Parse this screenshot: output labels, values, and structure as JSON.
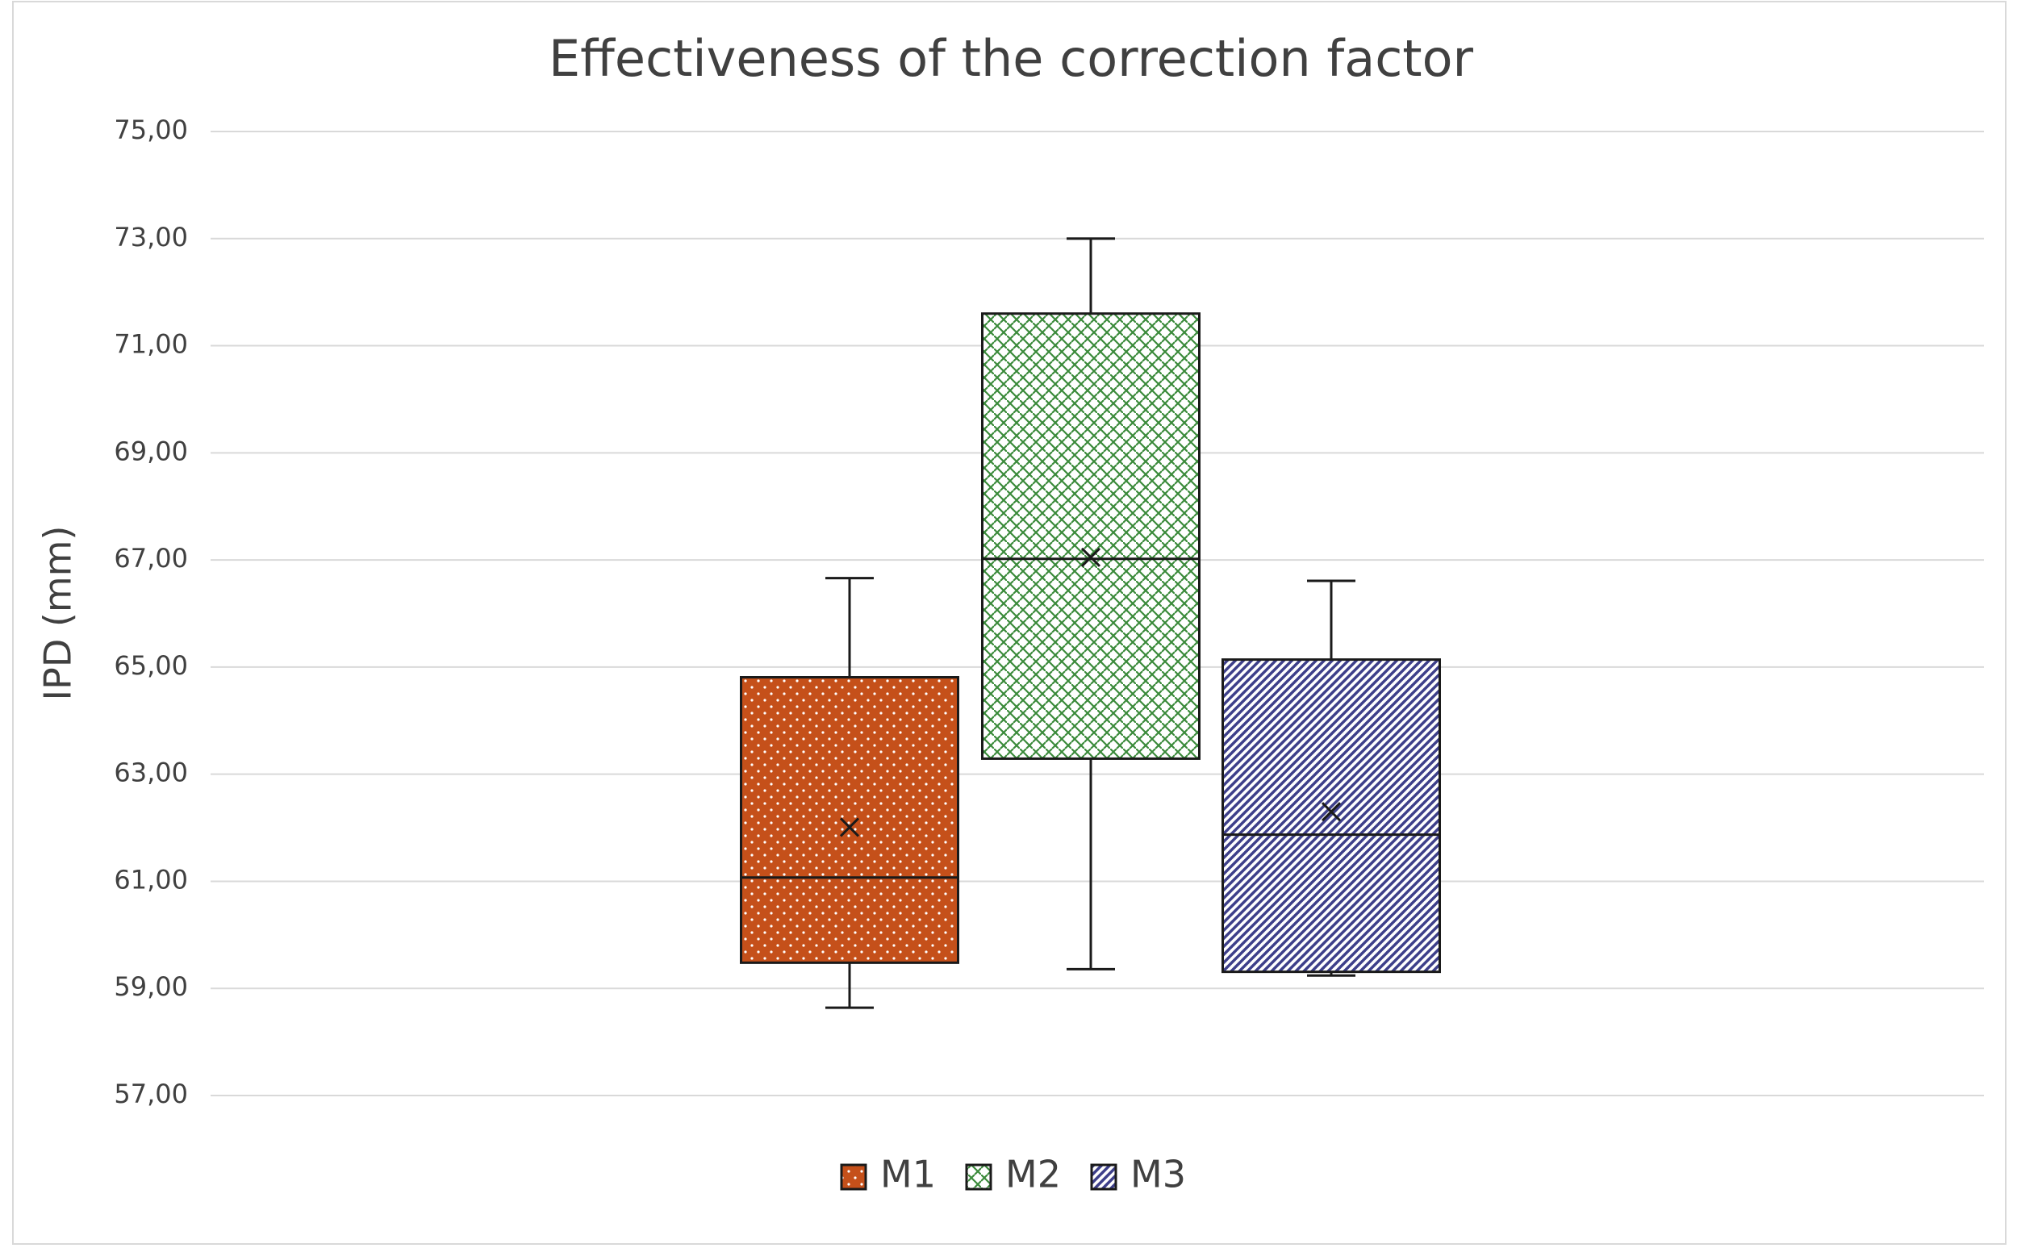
{
  "chart_data": {
    "type": "box",
    "title": "Effectiveness of the correction factor",
    "y_label": "IPD (mm)",
    "ylim": [
      57,
      75
    ],
    "yticks": [
      {
        "value": 57,
        "label": "57,00"
      },
      {
        "value": 59,
        "label": "59,00"
      },
      {
        "value": 61,
        "label": "61,00"
      },
      {
        "value": 63,
        "label": "63,00"
      },
      {
        "value": 65,
        "label": "65,00"
      },
      {
        "value": 67,
        "label": "67,00"
      },
      {
        "value": 69,
        "label": "69,00"
      },
      {
        "value": 71,
        "label": "71,00"
      },
      {
        "value": 73,
        "label": "73,00"
      },
      {
        "value": 75,
        "label": "75,00"
      }
    ],
    "grid": true,
    "legend": "bottom",
    "series": [
      {
        "name": "M1",
        "color": "#c5501a",
        "pattern": "dots",
        "min": 58.64,
        "q1": 59.48,
        "median": 61.07,
        "q3": 64.81,
        "max": 66.66,
        "mean": 62.01
      },
      {
        "name": "M2",
        "color": "#3a8a3a",
        "pattern": "weave",
        "min": 59.36,
        "q1": 63.29,
        "median": 67.02,
        "q3": 71.6,
        "max": 73.0,
        "mean": 67.05
      },
      {
        "name": "M3",
        "color": "#3d3f8a",
        "pattern": "diagonal",
        "min": 59.24,
        "q1": 59.31,
        "median": 61.87,
        "q3": 65.14,
        "max": 66.61,
        "mean": 62.3
      }
    ]
  }
}
